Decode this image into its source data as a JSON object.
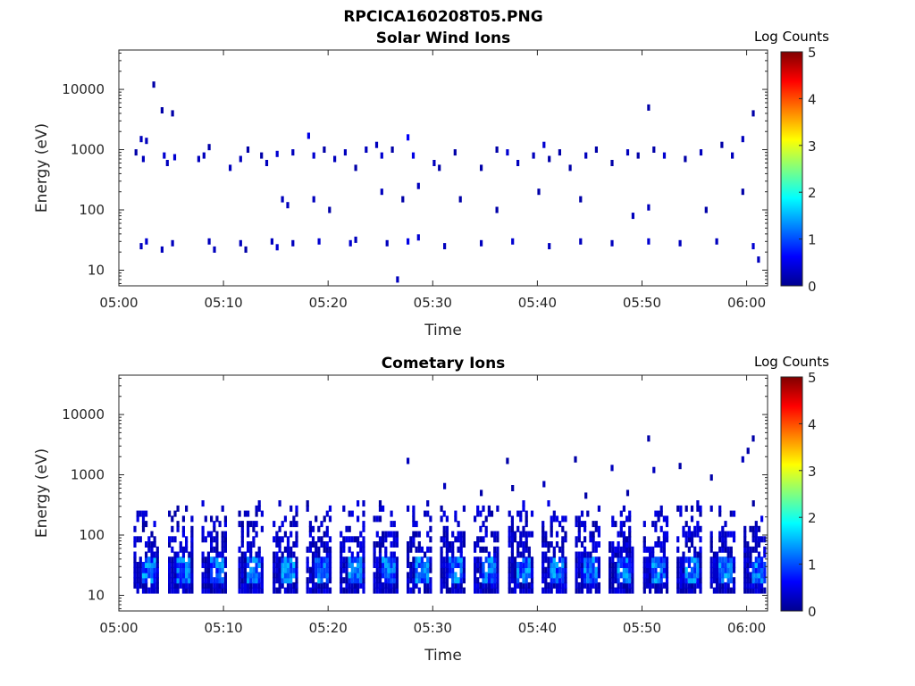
{
  "figure_title": "RPCICA160208T05.PNG",
  "chart_data": [
    {
      "type": "heatmap",
      "title": "Solar Wind Ions",
      "xlabel": "Time",
      "ylabel": "Energy (eV)",
      "x_range": [
        "05:00",
        "06:02"
      ],
      "x_ticks": [
        "05:00",
        "05:10",
        "05:20",
        "05:30",
        "05:40",
        "05:50",
        "06:00"
      ],
      "y_scale": "log",
      "y_range": [
        5.5,
        45000
      ],
      "y_ticks": [
        "10",
        "100",
        "1000",
        "10000"
      ],
      "colorbar": {
        "label": "Log Counts",
        "range": [
          0,
          5
        ],
        "ticks": [
          "0",
          "1",
          "2",
          "3",
          "4",
          "5"
        ]
      },
      "grid": false,
      "points": [
        {
          "t": 3.2,
          "e": 12000,
          "v": 0.2
        },
        {
          "t": 4.0,
          "e": 4500,
          "v": 0.2
        },
        {
          "t": 5.0,
          "e": 4000,
          "v": 0.2
        },
        {
          "t": 2.0,
          "e": 1500,
          "v": 0.3
        },
        {
          "t": 2.5,
          "e": 1400,
          "v": 0.3
        },
        {
          "t": 1.5,
          "e": 900,
          "v": 0.2
        },
        {
          "t": 2.2,
          "e": 700,
          "v": 0.3
        },
        {
          "t": 4.2,
          "e": 800,
          "v": 0.4
        },
        {
          "t": 4.5,
          "e": 600,
          "v": 0.3
        },
        {
          "t": 5.2,
          "e": 750,
          "v": 0.4
        },
        {
          "t": 7.5,
          "e": 700,
          "v": 0.3
        },
        {
          "t": 8.0,
          "e": 800,
          "v": 0.3
        },
        {
          "t": 8.5,
          "e": 1100,
          "v": 0.2
        },
        {
          "t": 10.5,
          "e": 500,
          "v": 0.3
        },
        {
          "t": 11.5,
          "e": 700,
          "v": 0.3
        },
        {
          "t": 12.2,
          "e": 1000,
          "v": 0.2
        },
        {
          "t": 13.5,
          "e": 800,
          "v": 0.2
        },
        {
          "t": 14.0,
          "e": 600,
          "v": 0.3
        },
        {
          "t": 15.0,
          "e": 850,
          "v": 0.4
        },
        {
          "t": 16.5,
          "e": 900,
          "v": 0.3
        },
        {
          "t": 18.0,
          "e": 1700,
          "v": 0.5
        },
        {
          "t": 18.5,
          "e": 800,
          "v": 0.4
        },
        {
          "t": 19.5,
          "e": 1000,
          "v": 0.2
        },
        {
          "t": 20.5,
          "e": 700,
          "v": 0.3
        },
        {
          "t": 21.5,
          "e": 900,
          "v": 0.3
        },
        {
          "t": 22.5,
          "e": 500,
          "v": 0.2
        },
        {
          "t": 23.5,
          "e": 1000,
          "v": 0.3
        },
        {
          "t": 24.5,
          "e": 1200,
          "v": 0.3
        },
        {
          "t": 25.0,
          "e": 800,
          "v": 0.4
        },
        {
          "t": 26.0,
          "e": 1000,
          "v": 0.2
        },
        {
          "t": 27.5,
          "e": 1600,
          "v": 0.6
        },
        {
          "t": 28.0,
          "e": 800,
          "v": 0.5
        },
        {
          "t": 28.5,
          "e": 250,
          "v": 0.3
        },
        {
          "t": 30.0,
          "e": 600,
          "v": 0.3
        },
        {
          "t": 30.5,
          "e": 500,
          "v": 0.2
        },
        {
          "t": 32.0,
          "e": 900,
          "v": 0.2
        },
        {
          "t": 34.5,
          "e": 500,
          "v": 0.2
        },
        {
          "t": 36.0,
          "e": 1000,
          "v": 0.2
        },
        {
          "t": 37.0,
          "e": 900,
          "v": 0.4
        },
        {
          "t": 38.0,
          "e": 600,
          "v": 0.3
        },
        {
          "t": 39.5,
          "e": 800,
          "v": 0.3
        },
        {
          "t": 40.5,
          "e": 1200,
          "v": 0.4
        },
        {
          "t": 41.0,
          "e": 700,
          "v": 0.2
        },
        {
          "t": 42.0,
          "e": 900,
          "v": 0.2
        },
        {
          "t": 43.0,
          "e": 500,
          "v": 0.2
        },
        {
          "t": 44.5,
          "e": 800,
          "v": 0.3
        },
        {
          "t": 45.5,
          "e": 1000,
          "v": 0.2
        },
        {
          "t": 47.0,
          "e": 600,
          "v": 0.2
        },
        {
          "t": 48.5,
          "e": 900,
          "v": 0.3
        },
        {
          "t": 49.5,
          "e": 800,
          "v": 0.2
        },
        {
          "t": 50.5,
          "e": 5000,
          "v": 0.2
        },
        {
          "t": 51.0,
          "e": 1000,
          "v": 0.2
        },
        {
          "t": 52.0,
          "e": 800,
          "v": 0.4
        },
        {
          "t": 54.0,
          "e": 700,
          "v": 0.2
        },
        {
          "t": 55.5,
          "e": 900,
          "v": 0.3
        },
        {
          "t": 57.5,
          "e": 1200,
          "v": 0.2
        },
        {
          "t": 58.5,
          "e": 800,
          "v": 0.3
        },
        {
          "t": 59.5,
          "e": 1500,
          "v": 0.3
        },
        {
          "t": 60.5,
          "e": 4000,
          "v": 0.2
        },
        {
          "t": 15.5,
          "e": 150,
          "v": 0.3
        },
        {
          "t": 16.0,
          "e": 120,
          "v": 0.3
        },
        {
          "t": 18.5,
          "e": 150,
          "v": 0.3
        },
        {
          "t": 20.0,
          "e": 100,
          "v": 0.2
        },
        {
          "t": 25.0,
          "e": 200,
          "v": 0.3
        },
        {
          "t": 27.0,
          "e": 150,
          "v": 0.2
        },
        {
          "t": 32.5,
          "e": 150,
          "v": 0.2
        },
        {
          "t": 36.0,
          "e": 100,
          "v": 0.2
        },
        {
          "t": 40.0,
          "e": 200,
          "v": 0.2
        },
        {
          "t": 44.0,
          "e": 150,
          "v": 0.2
        },
        {
          "t": 49.0,
          "e": 80,
          "v": 0.3
        },
        {
          "t": 50.5,
          "e": 110,
          "v": 0.3
        },
        {
          "t": 56.0,
          "e": 100,
          "v": 0.2
        },
        {
          "t": 59.5,
          "e": 200,
          "v": 0.2
        },
        {
          "t": 2.0,
          "e": 25,
          "v": 0.3
        },
        {
          "t": 2.5,
          "e": 30,
          "v": 0.4
        },
        {
          "t": 4.0,
          "e": 22,
          "v": 0.3
        },
        {
          "t": 5.0,
          "e": 28,
          "v": 0.3
        },
        {
          "t": 8.5,
          "e": 30,
          "v": 0.3
        },
        {
          "t": 9.0,
          "e": 22,
          "v": 0.3
        },
        {
          "t": 11.5,
          "e": 28,
          "v": 0.3
        },
        {
          "t": 12.0,
          "e": 22,
          "v": 0.2
        },
        {
          "t": 14.5,
          "e": 30,
          "v": 0.3
        },
        {
          "t": 15.0,
          "e": 24,
          "v": 0.4
        },
        {
          "t": 16.5,
          "e": 28,
          "v": 0.3
        },
        {
          "t": 19.0,
          "e": 30,
          "v": 0.4
        },
        {
          "t": 22.0,
          "e": 28,
          "v": 0.4
        },
        {
          "t": 22.5,
          "e": 32,
          "v": 0.3
        },
        {
          "t": 25.5,
          "e": 28,
          "v": 0.3
        },
        {
          "t": 26.5,
          "e": 7,
          "v": 0.3
        },
        {
          "t": 27.5,
          "e": 30,
          "v": 0.5
        },
        {
          "t": 28.5,
          "e": 35,
          "v": 0.4
        },
        {
          "t": 31.0,
          "e": 25,
          "v": 0.3
        },
        {
          "t": 34.5,
          "e": 28,
          "v": 0.3
        },
        {
          "t": 37.5,
          "e": 30,
          "v": 0.4
        },
        {
          "t": 41.0,
          "e": 25,
          "v": 0.3
        },
        {
          "t": 44.0,
          "e": 30,
          "v": 0.3
        },
        {
          "t": 47.0,
          "e": 28,
          "v": 0.3
        },
        {
          "t": 50.5,
          "e": 30,
          "v": 0.4
        },
        {
          "t": 53.5,
          "e": 28,
          "v": 0.3
        },
        {
          "t": 57.0,
          "e": 30,
          "v": 0.3
        },
        {
          "t": 60.5,
          "e": 25,
          "v": 0.4
        },
        {
          "t": 61.0,
          "e": 15,
          "v": 0.3
        }
      ]
    },
    {
      "type": "heatmap",
      "title": "Cometary Ions",
      "xlabel": "Time",
      "ylabel": "Energy (eV)",
      "x_range": [
        "05:00",
        "06:02"
      ],
      "x_ticks": [
        "05:00",
        "05:10",
        "05:20",
        "05:30",
        "05:40",
        "05:50",
        "06:00"
      ],
      "y_scale": "log",
      "y_range": [
        5.5,
        45000
      ],
      "y_ticks": [
        "10",
        "100",
        "1000",
        "10000"
      ],
      "colorbar": {
        "label": "Log Counts",
        "range": [
          0,
          5
        ],
        "ticks": [
          "0",
          "1",
          "2",
          "3",
          "4",
          "5"
        ]
      },
      "grid": false,
      "burst_times_min": [
        2.0,
        5.3,
        8.5,
        12.0,
        15.3,
        18.5,
        21.7,
        24.9,
        28.1,
        31.3,
        34.5,
        37.8,
        41.0,
        44.2,
        47.4,
        50.7,
        53.9,
        57.1,
        60.3
      ],
      "burst_energy_range_eV": [
        12,
        350
      ],
      "burst_peak_log_counts": 1.6,
      "sparse_points": [
        {
          "t": 27.5,
          "e": 1700,
          "v": 0.3
        },
        {
          "t": 31.0,
          "e": 650,
          "v": 0.3
        },
        {
          "t": 34.5,
          "e": 500,
          "v": 0.2
        },
        {
          "t": 37.0,
          "e": 1700,
          "v": 0.2
        },
        {
          "t": 37.5,
          "e": 600,
          "v": 0.2
        },
        {
          "t": 40.5,
          "e": 700,
          "v": 0.3
        },
        {
          "t": 43.5,
          "e": 1800,
          "v": 0.2
        },
        {
          "t": 44.5,
          "e": 450,
          "v": 0.2
        },
        {
          "t": 47.0,
          "e": 1300,
          "v": 0.3
        },
        {
          "t": 48.5,
          "e": 500,
          "v": 0.2
        },
        {
          "t": 50.5,
          "e": 4000,
          "v": 0.2
        },
        {
          "t": 51.0,
          "e": 1200,
          "v": 0.3
        },
        {
          "t": 53.5,
          "e": 1400,
          "v": 0.2
        },
        {
          "t": 56.5,
          "e": 900,
          "v": 0.2
        },
        {
          "t": 59.5,
          "e": 1800,
          "v": 0.3
        },
        {
          "t": 60.5,
          "e": 4000,
          "v": 0.2
        },
        {
          "t": 60.0,
          "e": 2500,
          "v": 0.2
        }
      ]
    }
  ]
}
